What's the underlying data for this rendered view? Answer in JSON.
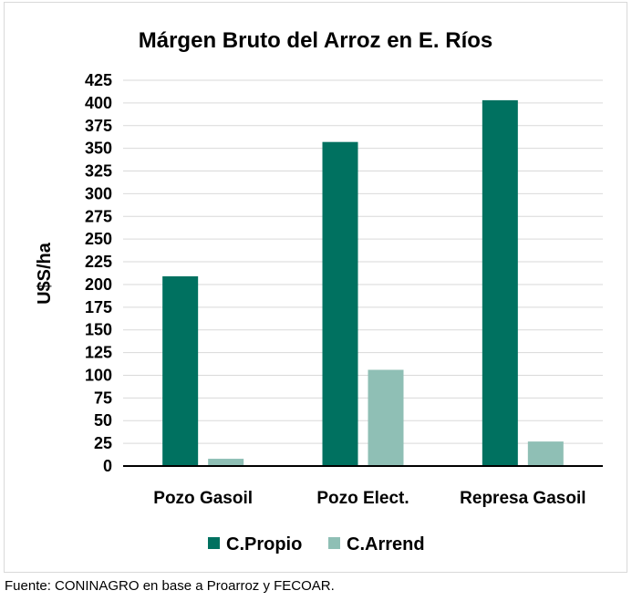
{
  "chart_data": {
    "type": "bar",
    "title": "Márgen Bruto del Arroz en E. Ríos",
    "ylabel": "U$S/ha",
    "xlabel": "",
    "categories": [
      "Pozo Gasoil",
      "Pozo Elect.",
      "Represa Gasoil"
    ],
    "series": [
      {
        "name": "C.Propio",
        "values": [
          209,
          357,
          403
        ],
        "color": "#007160"
      },
      {
        "name": "C.Arrend",
        "values": [
          8,
          106,
          27
        ],
        "color": "#8fbfb5"
      }
    ],
    "ylim": [
      0,
      425
    ],
    "yticks": [
      0,
      25,
      50,
      75,
      100,
      125,
      150,
      175,
      200,
      225,
      250,
      275,
      300,
      325,
      350,
      375,
      400,
      425
    ],
    "grid": true,
    "legend": "bottom"
  },
  "source_text": "Fuente: CONINAGRO en base a Proarroz y FECOAR."
}
